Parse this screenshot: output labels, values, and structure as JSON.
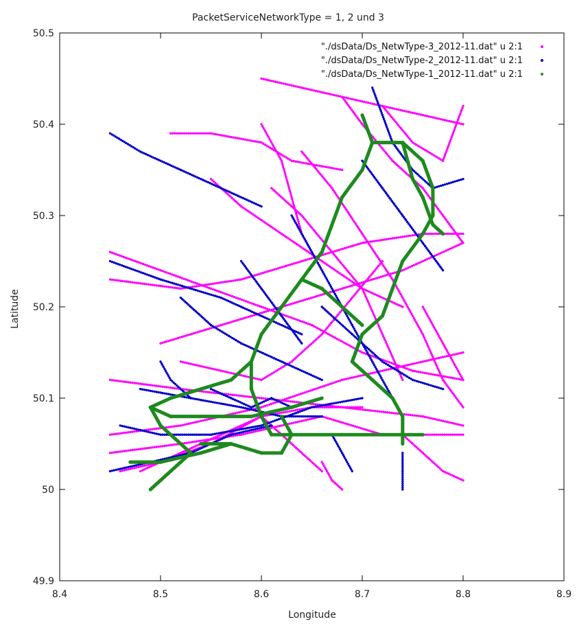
{
  "chart_data": {
    "type": "scatter",
    "title": "PacketServiceNetworkType = 1, 2 und 3",
    "xlabel": "Longitude",
    "ylabel": "Latitude",
    "xlim": [
      8.4,
      8.9
    ],
    "ylim": [
      49.9,
      50.5
    ],
    "xticks": [
      "8.4",
      "8.5",
      "8.6",
      "8.7",
      "8.8",
      "8.9"
    ],
    "yticks": [
      "49.9",
      "50",
      "50.1",
      "50.2",
      "50.3",
      "50.4",
      "50.5"
    ],
    "grid": false,
    "legend_position": "top-right",
    "series": [
      {
        "name": "\"./dsData/Ds_NetwType-3_2012-11.dat\" u 2:1",
        "color": "#ff00ff",
        "tracks": [
          [
            [
              8.51,
              50.39
            ],
            [
              8.55,
              50.39
            ],
            [
              8.6,
              50.38
            ],
            [
              8.63,
              50.36
            ],
            [
              8.68,
              50.35
            ]
          ],
          [
            [
              8.45,
              50.26
            ],
            [
              8.5,
              50.24
            ],
            [
              8.55,
              50.22
            ],
            [
              8.6,
              50.2
            ],
            [
              8.65,
              50.18
            ],
            [
              8.7,
              50.15
            ],
            [
              8.75,
              50.13
            ],
            [
              8.8,
              50.12
            ]
          ],
          [
            [
              8.45,
              50.23
            ],
            [
              8.52,
              50.22
            ],
            [
              8.58,
              50.23
            ],
            [
              8.64,
              50.25
            ],
            [
              8.7,
              50.27
            ],
            [
              8.76,
              50.28
            ],
            [
              8.8,
              50.28
            ]
          ],
          [
            [
              8.5,
              50.16
            ],
            [
              8.56,
              50.18
            ],
            [
              8.62,
              50.2
            ],
            [
              8.68,
              50.22
            ],
            [
              8.74,
              50.24
            ],
            [
              8.8,
              50.27
            ]
          ],
          [
            [
              8.45,
              50.12
            ],
            [
              8.52,
              50.11
            ],
            [
              8.6,
              50.1
            ],
            [
              8.68,
              50.09
            ],
            [
              8.76,
              50.08
            ],
            [
              8.8,
              50.07
            ]
          ],
          [
            [
              8.45,
              50.06
            ],
            [
              8.52,
              50.07
            ],
            [
              8.6,
              50.09
            ],
            [
              8.68,
              50.12
            ],
            [
              8.76,
              50.14
            ],
            [
              8.8,
              50.15
            ]
          ],
          [
            [
              8.45,
              50.04
            ],
            [
              8.52,
              50.05
            ],
            [
              8.58,
              50.06
            ],
            [
              8.66,
              50.08
            ],
            [
              8.72,
              50.06
            ],
            [
              8.8,
              50.06
            ]
          ],
          [
            [
              8.46,
              50.02
            ],
            [
              8.5,
              50.03
            ],
            [
              8.55,
              50.05
            ],
            [
              8.6,
              50.08
            ],
            [
              8.65,
              50.09
            ],
            [
              8.7,
              50.09
            ]
          ],
          [
            [
              8.6,
              50.45
            ],
            [
              8.64,
              50.44
            ],
            [
              8.68,
              50.43
            ],
            [
              8.72,
              50.42
            ],
            [
              8.76,
              50.41
            ],
            [
              8.8,
              50.4
            ]
          ],
          [
            [
              8.61,
              50.33
            ],
            [
              8.64,
              50.3
            ],
            [
              8.67,
              50.26
            ],
            [
              8.7,
              50.22
            ],
            [
              8.72,
              50.17
            ],
            [
              8.74,
              50.12
            ]
          ],
          [
            [
              8.64,
              50.37
            ],
            [
              8.67,
              50.33
            ],
            [
              8.7,
              50.28
            ],
            [
              8.73,
              50.23
            ],
            [
              8.76,
              50.17
            ],
            [
              8.78,
              50.12
            ],
            [
              8.8,
              50.09
            ]
          ],
          [
            [
              8.68,
              50.43
            ],
            [
              8.7,
              50.4
            ],
            [
              8.73,
              50.36
            ],
            [
              8.76,
              50.33
            ],
            [
              8.78,
              50.3
            ],
            [
              8.8,
              50.27
            ]
          ],
          [
            [
              8.72,
              50.42
            ],
            [
              8.75,
              50.38
            ],
            [
              8.78,
              50.36
            ],
            [
              8.8,
              50.42
            ]
          ],
          [
            [
              8.52,
              50.14
            ],
            [
              8.56,
              50.13
            ],
            [
              8.6,
              50.12
            ],
            [
              8.63,
              50.14
            ],
            [
              8.66,
              50.17
            ],
            [
              8.69,
              50.21
            ],
            [
              8.72,
              50.25
            ]
          ],
          [
            [
              8.48,
              50.02
            ],
            [
              8.52,
              50.04
            ],
            [
              8.56,
              50.06
            ],
            [
              8.6,
              50.08
            ],
            [
              8.63,
              50.05
            ],
            [
              8.66,
              50.02
            ]
          ],
          [
            [
              8.55,
              50.34
            ],
            [
              8.58,
              50.31
            ],
            [
              8.62,
              50.28
            ],
            [
              8.66,
              50.25
            ],
            [
              8.7,
              50.22
            ],
            [
              8.74,
              50.2
            ]
          ],
          [
            [
              8.6,
              50.4
            ],
            [
              8.62,
              50.36
            ],
            [
              8.63,
              50.32
            ],
            [
              8.64,
              50.28
            ],
            [
              8.66,
              50.24
            ]
          ],
          [
            [
              8.76,
              50.2
            ],
            [
              8.78,
              50.16
            ],
            [
              8.8,
              50.12
            ]
          ],
          [
            [
              8.74,
              50.06
            ],
            [
              8.76,
              50.04
            ],
            [
              8.78,
              50.02
            ],
            [
              8.8,
              50.01
            ]
          ],
          [
            [
              8.66,
              50.03
            ],
            [
              8.67,
              50.01
            ],
            [
              8.68,
              50.0
            ]
          ]
        ]
      },
      {
        "name": "\"./dsData/Ds_NetwType-2_2012-11.dat\" u 2:1",
        "color": "#0000c8",
        "tracks": [
          [
            [
              8.45,
              50.39
            ],
            [
              8.48,
              50.37
            ],
            [
              8.52,
              50.35
            ],
            [
              8.56,
              50.33
            ],
            [
              8.6,
              50.31
            ]
          ],
          [
            [
              8.45,
              50.25
            ],
            [
              8.5,
              50.23
            ],
            [
              8.56,
              50.21
            ],
            [
              8.6,
              50.19
            ],
            [
              8.64,
              50.17
            ]
          ],
          [
            [
              8.48,
              50.11
            ],
            [
              8.53,
              50.1
            ],
            [
              8.58,
              50.09
            ],
            [
              8.62,
              50.08
            ],
            [
              8.66,
              50.08
            ]
          ],
          [
            [
              8.46,
              50.07
            ],
            [
              8.5,
              50.06
            ],
            [
              8.55,
              50.06
            ],
            [
              8.6,
              50.07
            ],
            [
              8.65,
              50.09
            ],
            [
              8.7,
              50.1
            ]
          ],
          [
            [
              8.45,
              50.02
            ],
            [
              8.49,
              50.03
            ],
            [
              8.53,
              50.04
            ],
            [
              8.57,
              50.06
            ],
            [
              8.61,
              50.07
            ]
          ],
          [
            [
              8.52,
              50.21
            ],
            [
              8.55,
              50.18
            ],
            [
              8.58,
              50.16
            ],
            [
              8.62,
              50.14
            ],
            [
              8.66,
              50.12
            ]
          ],
          [
            [
              8.63,
              50.3
            ],
            [
              8.65,
              50.26
            ],
            [
              8.67,
              50.22
            ],
            [
              8.69,
              50.18
            ],
            [
              8.71,
              50.14
            ],
            [
              8.73,
              50.1
            ]
          ],
          [
            [
              8.71,
              50.44
            ],
            [
              8.72,
              50.41
            ],
            [
              8.73,
              50.38
            ],
            [
              8.75,
              50.35
            ],
            [
              8.77,
              50.33
            ],
            [
              8.8,
              50.34
            ]
          ],
          [
            [
              8.7,
              50.36
            ],
            [
              8.72,
              50.33
            ],
            [
              8.74,
              50.3
            ],
            [
              8.76,
              50.27
            ],
            [
              8.78,
              50.24
            ]
          ],
          [
            [
              8.66,
              50.2
            ],
            [
              8.69,
              50.17
            ],
            [
              8.72,
              50.14
            ],
            [
              8.75,
              50.12
            ],
            [
              8.78,
              50.11
            ]
          ],
          [
            [
              8.58,
              50.25
            ],
            [
              8.6,
              50.22
            ],
            [
              8.62,
              50.19
            ],
            [
              8.64,
              50.16
            ]
          ],
          [
            [
              8.55,
              50.11
            ],
            [
              8.57,
              50.1
            ],
            [
              8.59,
              50.09
            ],
            [
              8.61,
              50.1
            ],
            [
              8.63,
              50.09
            ]
          ],
          [
            [
              8.74,
              50.04
            ],
            [
              8.74,
              50.02
            ],
            [
              8.74,
              50.0
            ]
          ],
          [
            [
              8.67,
              50.06
            ],
            [
              8.68,
              50.04
            ],
            [
              8.69,
              50.02
            ]
          ],
          [
            [
              8.5,
              50.14
            ],
            [
              8.51,
              50.12
            ],
            [
              8.53,
              50.1
            ]
          ]
        ]
      },
      {
        "name": "\"./dsData/Ds_NetwType-1_2012-11.dat\" u 2:1",
        "color": "#1e8a1e",
        "tracks": [
          [
            [
              8.7,
              50.41
            ],
            [
              8.71,
              50.38
            ],
            [
              8.7,
              50.35
            ],
            [
              8.68,
              50.32
            ],
            [
              8.67,
              50.29
            ],
            [
              8.66,
              50.26
            ],
            [
              8.64,
              50.23
            ],
            [
              8.62,
              50.2
            ],
            [
              8.6,
              50.17
            ],
            [
              8.59,
              50.14
            ],
            [
              8.59,
              50.11
            ],
            [
              8.6,
              50.08
            ],
            [
              8.61,
              50.06
            ],
            [
              8.64,
              50.06
            ],
            [
              8.68,
              50.06
            ],
            [
              8.72,
              50.06
            ],
            [
              8.76,
              50.06
            ]
          ],
          [
            [
              8.71,
              50.38
            ],
            [
              8.74,
              50.38
            ],
            [
              8.76,
              50.36
            ],
            [
              8.77,
              50.33
            ],
            [
              8.77,
              50.3
            ],
            [
              8.76,
              50.28
            ],
            [
              8.74,
              50.25
            ],
            [
              8.73,
              50.22
            ],
            [
              8.72,
              50.19
            ],
            [
              8.7,
              50.17
            ],
            [
              8.69,
              50.14
            ],
            [
              8.71,
              50.12
            ],
            [
              8.73,
              50.1
            ],
            [
              8.74,
              50.08
            ],
            [
              8.74,
              50.05
            ]
          ],
          [
            [
              8.74,
              50.38
            ],
            [
              8.75,
              50.34
            ],
            [
              8.76,
              50.32
            ],
            [
              8.77,
              50.29
            ],
            [
              8.78,
              50.28
            ]
          ],
          [
            [
              8.59,
              50.14
            ],
            [
              8.57,
              50.12
            ],
            [
              8.54,
              50.11
            ],
            [
              8.51,
              50.1
            ],
            [
              8.49,
              50.09
            ],
            [
              8.51,
              50.08
            ],
            [
              8.55,
              50.08
            ],
            [
              8.59,
              50.08
            ],
            [
              8.63,
              50.09
            ],
            [
              8.66,
              50.1
            ]
          ],
          [
            [
              8.62,
              50.08
            ],
            [
              8.63,
              50.06
            ],
            [
              8.62,
              50.04
            ],
            [
              8.6,
              50.04
            ],
            [
              8.57,
              50.05
            ],
            [
              8.54,
              50.05
            ]
          ],
          [
            [
              8.47,
              50.03
            ],
            [
              8.5,
              50.03
            ],
            [
              8.54,
              50.04
            ],
            [
              8.57,
              50.05
            ]
          ],
          [
            [
              8.49,
              50.09
            ],
            [
              8.5,
              50.07
            ],
            [
              8.52,
              50.05
            ],
            [
              8.53,
              50.04
            ]
          ],
          [
            [
              8.64,
              50.23
            ],
            [
              8.66,
              50.22
            ],
            [
              8.68,
              50.2
            ],
            [
              8.7,
              50.18
            ]
          ],
          [
            [
              8.53,
              50.04
            ],
            [
              8.51,
              50.02
            ],
            [
              8.5,
              50.01
            ],
            [
              8.49,
              50.0
            ]
          ]
        ]
      }
    ]
  }
}
